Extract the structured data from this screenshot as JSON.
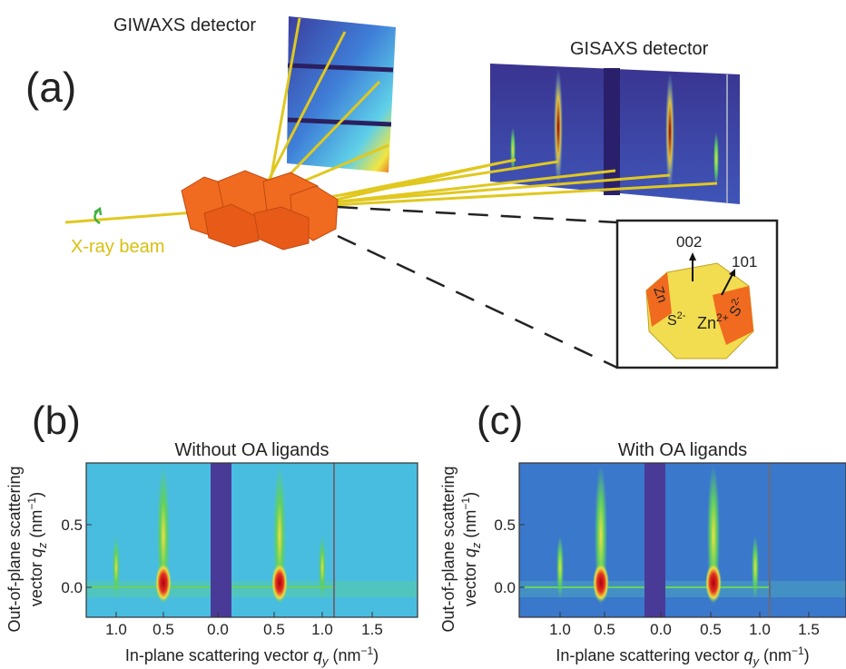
{
  "panel_a": {
    "label": "(a)",
    "giwaxs_label": "GIWAXS detector",
    "gisaxs_label": "GISAXS detector",
    "beam_label": "X-ray beam",
    "inset": {
      "facet_002": "002",
      "facet_101": "101",
      "zn_left": "Zn",
      "s_center": "S",
      "s_center_charge": "2-",
      "zn_right": "Zn",
      "zn_right_charge": "2+",
      "s_right": "S",
      "s_right_charge": "2-"
    }
  },
  "panel_b": {
    "label": "(b)",
    "title": "Without OA ligands",
    "y_label_line1": "Out-of-plane scattering",
    "y_label_line2": {
      "text": "vector ",
      "symbol": "q",
      "subscript": "z",
      "unit": " (nm",
      "exponent": "−1",
      "close": ")"
    },
    "x_label": {
      "text": "In-plane scattering vector ",
      "symbol": "q",
      "subscript": "y",
      "unit": " (nm",
      "exponent": "−1",
      "close": ")"
    },
    "x_ticks": [
      "1.0",
      "0.5",
      "0.0",
      "0.5",
      "1.0",
      "1.5"
    ],
    "y_ticks": [
      "0.5",
      "0.0"
    ]
  },
  "panel_c": {
    "label": "(c)",
    "title": "With OA ligands",
    "y_label_line1": "Out-of-plane scattering",
    "y_label_line2": {
      "text": "vector ",
      "symbol": "q",
      "subscript": "z",
      "unit": " (nm",
      "exponent": "−1",
      "close": ")"
    },
    "x_label": {
      "text": "In-plane scattering vector ",
      "symbol": "q",
      "subscript": "y",
      "unit": " (nm",
      "exponent": "−1",
      "close": ")"
    },
    "x_ticks": [
      "1.0",
      "0.5",
      "0.0",
      "0.5",
      "1.0",
      "1.5"
    ],
    "y_ticks": [
      "0.5",
      "0.0"
    ]
  }
}
